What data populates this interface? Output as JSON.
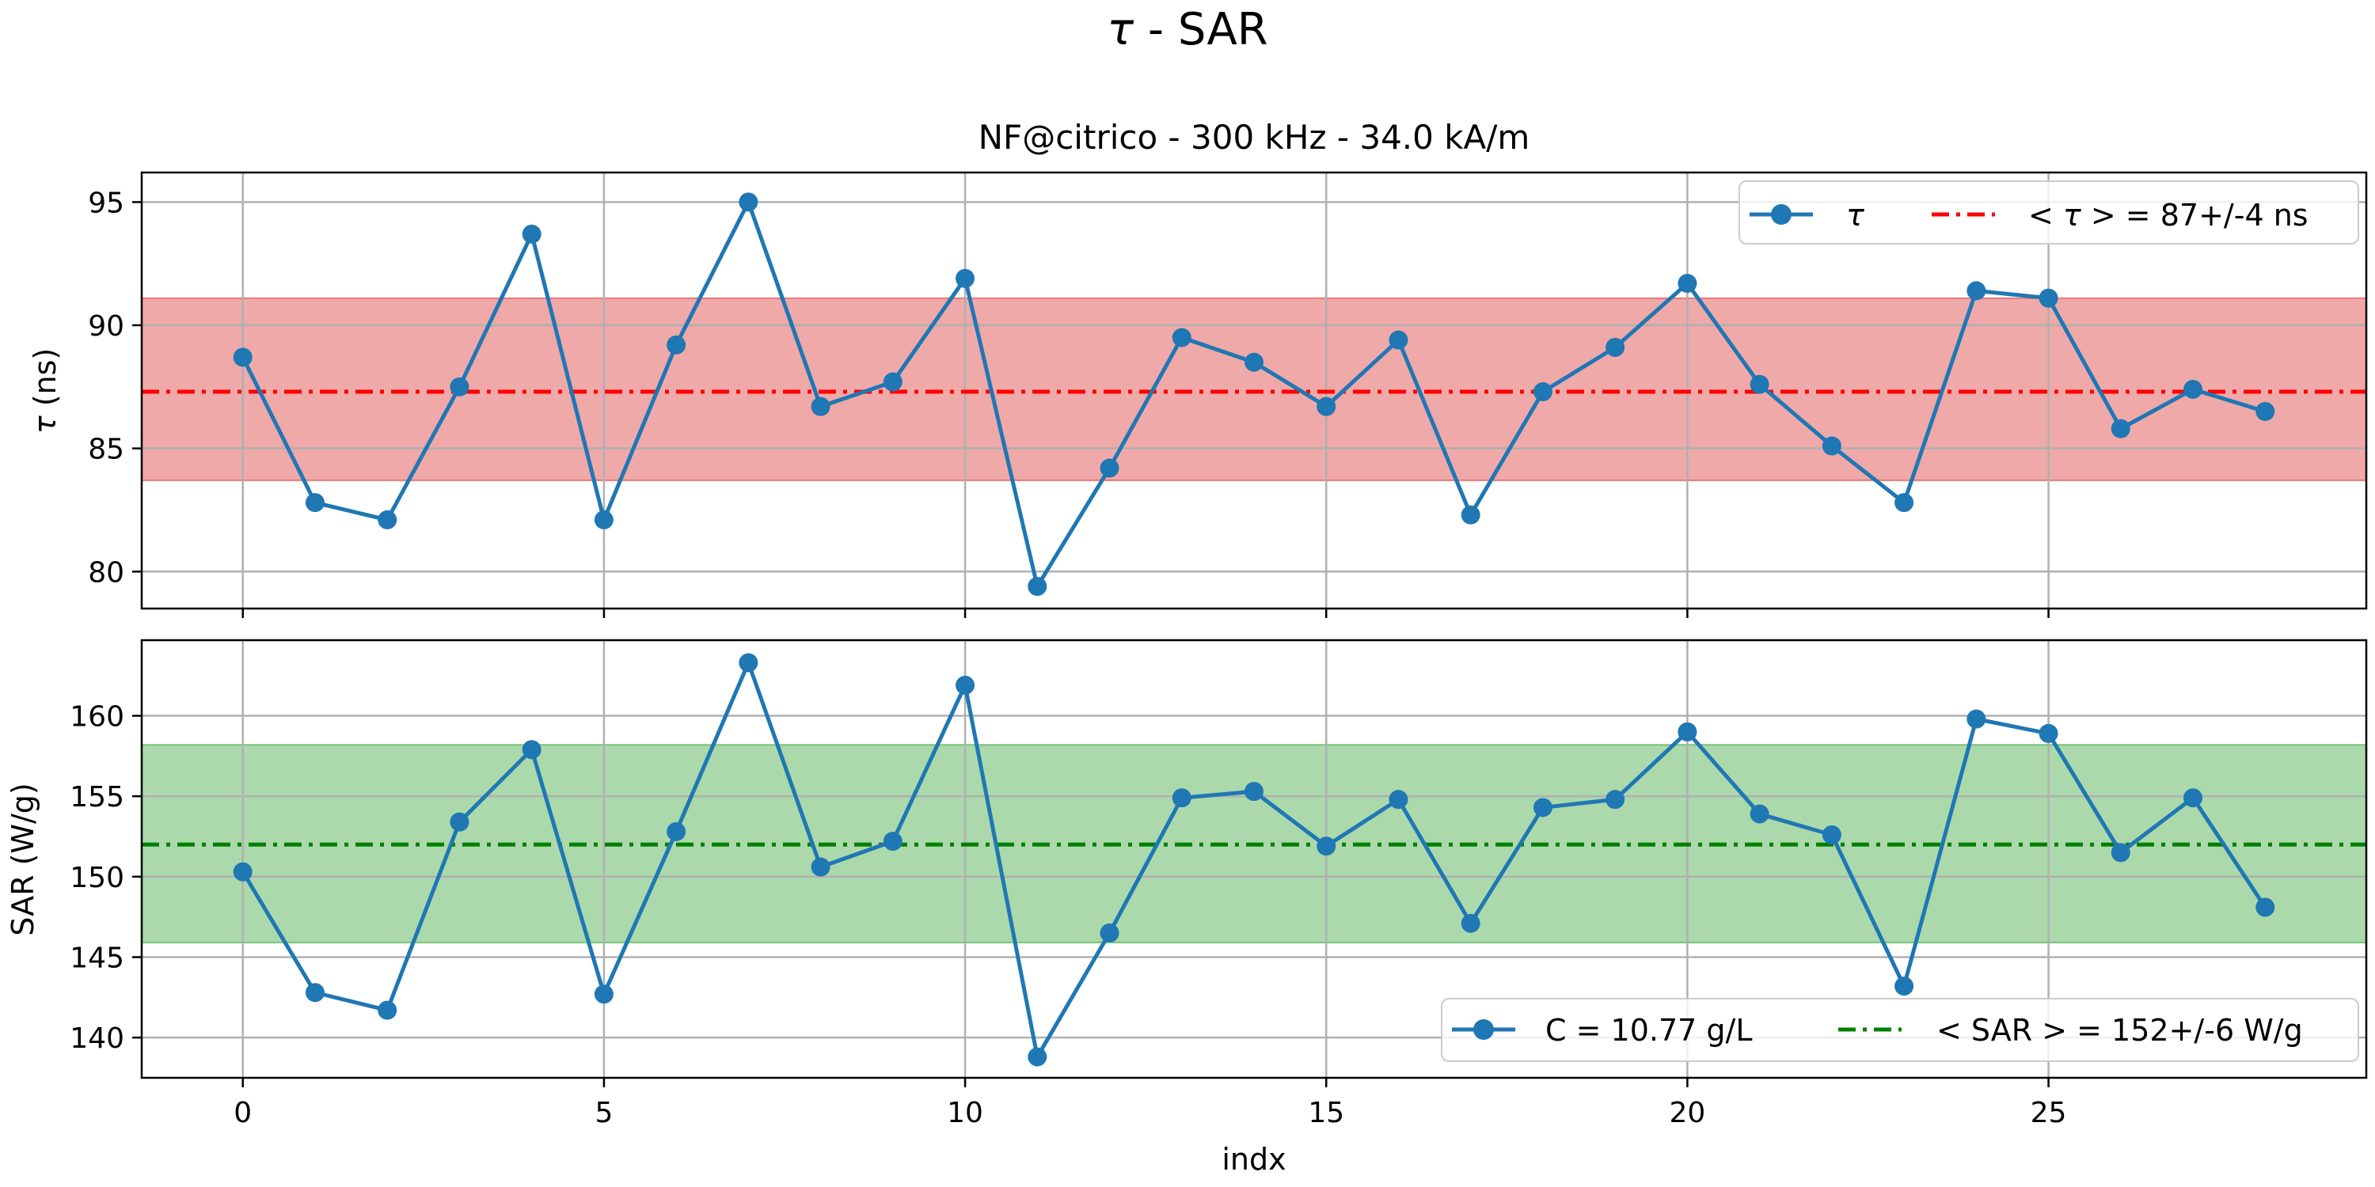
{
  "figure": {
    "suptitle_symbol": "τ",
    "suptitle_rest": " - SAR"
  },
  "chart_data": [
    {
      "type": "line",
      "title": "NF@citrico - 300 kHz - 34.0 kA/m",
      "xlabel": "",
      "ylabel_symbol": "τ",
      "ylabel_rest": " (ns)",
      "xlim": [
        -1.4,
        29.4
      ],
      "ylim": [
        78.5,
        96.2
      ],
      "xticks": [
        0,
        5,
        10,
        15,
        20,
        25
      ],
      "yticks": [
        80,
        85,
        90,
        95
      ],
      "grid": true,
      "legend_position": "upper right",
      "series": [
        {
          "name": "τ",
          "color": "#1f77b4",
          "marker": "circle",
          "x": [
            0,
            1,
            2,
            3,
            4,
            5,
            6,
            7,
            8,
            9,
            10,
            11,
            12,
            13,
            14,
            15,
            16,
            17,
            18,
            19,
            20,
            21,
            22,
            23,
            24,
            25,
            26,
            27,
            28
          ],
          "y": [
            88.7,
            82.8,
            82.1,
            87.5,
            93.7,
            82.1,
            89.2,
            95.0,
            86.7,
            87.7,
            91.9,
            79.4,
            84.2,
            89.5,
            88.5,
            86.7,
            89.4,
            82.3,
            87.3,
            89.1,
            91.7,
            87.6,
            85.1,
            82.8,
            91.4,
            91.1,
            85.8,
            87.4,
            86.5
          ]
        }
      ],
      "mean_line": {
        "label_left": "< ",
        "label_symbol": "τ",
        "label_right": " >  = 87+/-4 ns",
        "value": 87.3,
        "color": "#ff0000",
        "style": "dash-dot"
      },
      "band": {
        "low": 83.7,
        "high": 91.1,
        "color": "#d62728",
        "alpha": 0.4
      }
    },
    {
      "type": "line",
      "title": "",
      "xlabel": "indx",
      "ylabel": "SAR (W/g)",
      "xlim": [
        -1.4,
        29.4
      ],
      "ylim": [
        137.5,
        164.7
      ],
      "xticks": [
        0,
        5,
        10,
        15,
        20,
        25
      ],
      "yticks": [
        140,
        145,
        150,
        155,
        160
      ],
      "grid": true,
      "legend_position": "lower right",
      "series": [
        {
          "name": "C = 10.77 g/L",
          "color": "#1f77b4",
          "marker": "circle",
          "x": [
            0,
            1,
            2,
            3,
            4,
            5,
            6,
            7,
            8,
            9,
            10,
            11,
            12,
            13,
            14,
            15,
            16,
            17,
            18,
            19,
            20,
            21,
            22,
            23,
            24,
            25,
            26,
            27,
            28
          ],
          "y": [
            150.3,
            142.8,
            141.7,
            153.4,
            157.9,
            142.7,
            152.8,
            163.3,
            150.6,
            152.2,
            161.9,
            138.8,
            146.5,
            154.9,
            155.3,
            151.9,
            154.8,
            147.1,
            154.3,
            154.8,
            159.0,
            153.9,
            152.6,
            143.2,
            159.8,
            158.9,
            151.5,
            154.9,
            148.1
          ]
        }
      ],
      "mean_line": {
        "label": "< SAR >  = 152+/-6 W/g",
        "value": 152.0,
        "color": "#008000",
        "style": "dash-dot"
      },
      "band": {
        "low": 145.9,
        "high": 158.2,
        "color": "#2ca02c",
        "alpha": 0.4
      }
    }
  ]
}
